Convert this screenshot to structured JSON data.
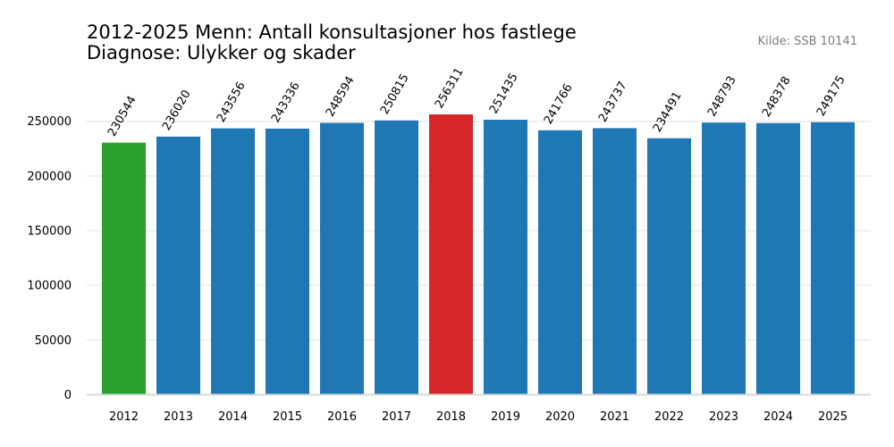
{
  "chart_data": {
    "type": "bar",
    "title_lines": [
      "2012-2025 Menn: Antall konsultasjoner hos fastlege",
      "Diagnose: Ulykker og skader"
    ],
    "source": "Kilde: SSB 10141",
    "xlabel": "",
    "ylabel": "",
    "categories": [
      "2012",
      "2013",
      "2014",
      "2015",
      "2016",
      "2017",
      "2018",
      "2019",
      "2020",
      "2021",
      "2022",
      "2023",
      "2024",
      "2025"
    ],
    "values": [
      230544,
      236020,
      243556,
      243336,
      248594,
      250815,
      256311,
      251435,
      241766,
      243737,
      234491,
      248793,
      248378,
      249175
    ],
    "ylim": [
      0,
      275000
    ],
    "yticks": [
      0,
      50000,
      100000,
      150000,
      200000,
      250000
    ],
    "grid": "horizontal",
    "legend": "none",
    "colors": {
      "default": "#1f77b4",
      "min": "#2ca02c",
      "max": "#d62728",
      "grid": "#ebebeb",
      "axis": "#d9d9d9"
    },
    "highlight": {
      "lowest": "2012",
      "highest": "2018"
    }
  }
}
